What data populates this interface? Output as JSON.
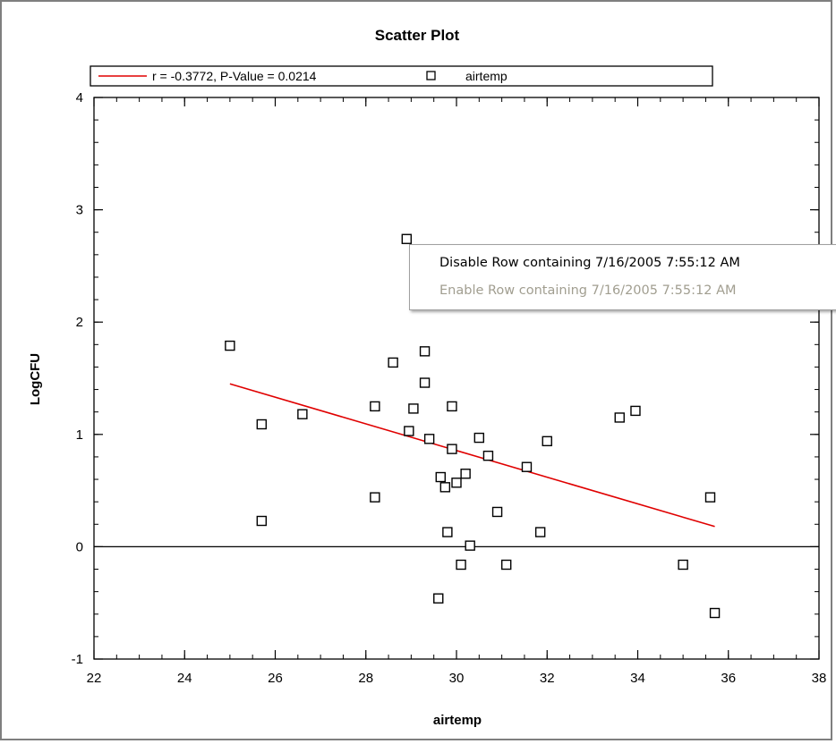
{
  "chart_data": {
    "type": "scatter",
    "title": "Scatter Plot",
    "xlabel": "airtemp",
    "ylabel": "LogCFU",
    "xlim": [
      22,
      38
    ],
    "ylim": [
      -1,
      4
    ],
    "x_ticks": [
      22,
      24,
      26,
      28,
      30,
      32,
      34,
      36,
      38
    ],
    "y_ticks": [
      -1,
      0,
      1,
      2,
      3,
      4
    ],
    "grid": false,
    "legend_placement": "top",
    "series": [
      {
        "name": "airtemp",
        "marker": "hollow-square",
        "color": "#000000",
        "points": [
          {
            "x": 25.0,
            "y": 1.79
          },
          {
            "x": 25.7,
            "y": 1.09
          },
          {
            "x": 25.7,
            "y": 0.23
          },
          {
            "x": 26.6,
            "y": 1.18
          },
          {
            "x": 28.2,
            "y": 1.25
          },
          {
            "x": 28.2,
            "y": 0.44
          },
          {
            "x": 28.6,
            "y": 1.64
          },
          {
            "x": 28.9,
            "y": 2.74
          },
          {
            "x": 28.95,
            "y": 1.03
          },
          {
            "x": 29.05,
            "y": 1.23
          },
          {
            "x": 29.3,
            "y": 1.74
          },
          {
            "x": 29.3,
            "y": 1.46
          },
          {
            "x": 29.4,
            "y": 0.96
          },
          {
            "x": 29.6,
            "y": -0.46
          },
          {
            "x": 29.65,
            "y": 0.62
          },
          {
            "x": 29.75,
            "y": 0.53
          },
          {
            "x": 29.8,
            "y": 0.13
          },
          {
            "x": 29.9,
            "y": 1.25
          },
          {
            "x": 29.9,
            "y": 0.87
          },
          {
            "x": 30.0,
            "y": 0.57
          },
          {
            "x": 30.1,
            "y": -0.16
          },
          {
            "x": 30.2,
            "y": 0.65
          },
          {
            "x": 30.3,
            "y": 0.01
          },
          {
            "x": 30.5,
            "y": 0.97
          },
          {
            "x": 30.7,
            "y": 0.81
          },
          {
            "x": 30.9,
            "y": 0.31
          },
          {
            "x": 31.1,
            "y": -0.16
          },
          {
            "x": 31.55,
            "y": 0.71
          },
          {
            "x": 31.85,
            "y": 0.13
          },
          {
            "x": 32.0,
            "y": 0.94
          },
          {
            "x": 33.6,
            "y": 1.15
          },
          {
            "x": 33.95,
            "y": 1.21
          },
          {
            "x": 35.0,
            "y": -0.16
          },
          {
            "x": 35.6,
            "y": 0.44
          },
          {
            "x": 35.7,
            "y": -0.59
          }
        ]
      }
    ],
    "fit_line": {
      "label": "r = -0.3772, P-Value = 0.0214",
      "color": "#e00000",
      "x": [
        25.0,
        35.7
      ],
      "y": [
        1.45,
        0.18
      ]
    },
    "reference_line_y": 0
  },
  "context_menu": {
    "items": [
      {
        "label": "Disable Row containing 7/16/2005 7:55:12 AM",
        "enabled": true
      },
      {
        "label": "Enable Row containing 7/16/2005 7:55:12 AM",
        "enabled": false
      }
    ]
  }
}
